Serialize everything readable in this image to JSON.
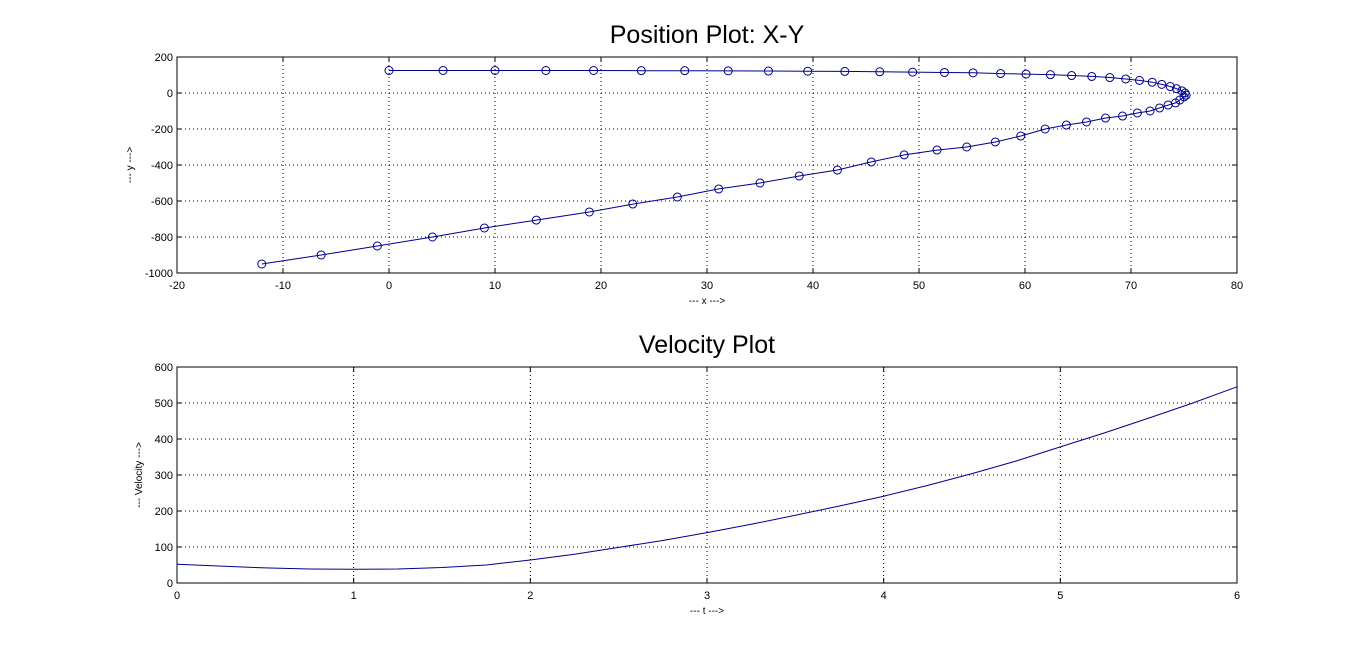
{
  "chart_data": [
    {
      "type": "line",
      "title": "Position Plot: X-Y",
      "xlabel": "--- x --->",
      "ylabel": "--- y --->",
      "xlim": [
        -20,
        80
      ],
      "ylim": [
        -1000,
        200
      ],
      "xticks": [
        -20,
        -10,
        0,
        10,
        20,
        30,
        40,
        50,
        60,
        70,
        80
      ],
      "yticks": [
        -1000,
        -800,
        -600,
        -400,
        -200,
        0,
        200
      ],
      "grid": true,
      "marker": "circle",
      "color": "#00008b",
      "x": [
        0,
        5.1,
        10.0,
        14.8,
        19.3,
        23.8,
        27.9,
        32.0,
        35.8,
        39.5,
        43.0,
        46.3,
        49.4,
        52.4,
        55.1,
        57.7,
        60.1,
        62.4,
        64.4,
        66.3,
        68.0,
        69.5,
        70.8,
        72.0,
        72.9,
        73.7,
        74.3,
        74.8,
        75.1,
        75.2,
        75.0,
        74.6,
        74.2,
        73.5,
        72.7,
        71.8,
        70.6,
        69.2,
        67.6,
        65.8,
        63.9,
        61.9,
        59.6,
        57.2,
        54.5,
        51.7,
        48.6,
        45.5,
        42.3,
        38.7,
        35.0,
        31.1,
        27.2,
        23.0,
        18.9,
        13.9,
        9.0,
        4.1,
        -1.1,
        -6.4,
        -12.0
      ],
      "y": [
        125,
        125,
        125,
        125,
        125,
        124,
        124,
        123,
        122,
        121,
        120,
        118,
        116,
        114,
        112,
        108,
        105,
        102,
        97,
        92,
        86,
        78,
        70,
        60,
        48,
        36,
        24,
        12,
        0,
        -12,
        -22,
        -39,
        -55,
        -67,
        -83,
        -100,
        -111,
        -128,
        -139,
        -161,
        -178,
        -200,
        -239,
        -272,
        -300,
        -317,
        -344,
        -383,
        -428,
        -461,
        -500,
        -533,
        -578,
        -617,
        -661,
        -706,
        -750,
        -800,
        -850,
        -900,
        -950
      ]
    },
    {
      "type": "line",
      "title": "Velocity Plot",
      "xlabel": "--- t --->",
      "ylabel": "--- Velocity --->",
      "xlim": [
        0,
        6
      ],
      "ylim": [
        0,
        600
      ],
      "xticks": [
        0,
        1,
        2,
        3,
        4,
        5,
        6
      ],
      "yticks": [
        0,
        100,
        200,
        300,
        400,
        500,
        600
      ],
      "grid": true,
      "color": "#00008b",
      "x": [
        0,
        0.25,
        0.5,
        0.75,
        1.0,
        1.25,
        1.5,
        1.75,
        2.0,
        2.25,
        2.5,
        2.75,
        3.0,
        3.25,
        3.5,
        3.75,
        4.0,
        4.25,
        4.5,
        4.75,
        5.0,
        5.25,
        5.5,
        5.75,
        6.0
      ],
      "y": [
        52,
        47,
        42,
        39,
        38,
        39,
        43,
        50,
        64,
        80,
        99,
        118,
        140,
        163,
        188,
        214,
        241,
        271,
        304,
        339,
        378,
        417,
        458,
        500,
        545
      ]
    }
  ]
}
